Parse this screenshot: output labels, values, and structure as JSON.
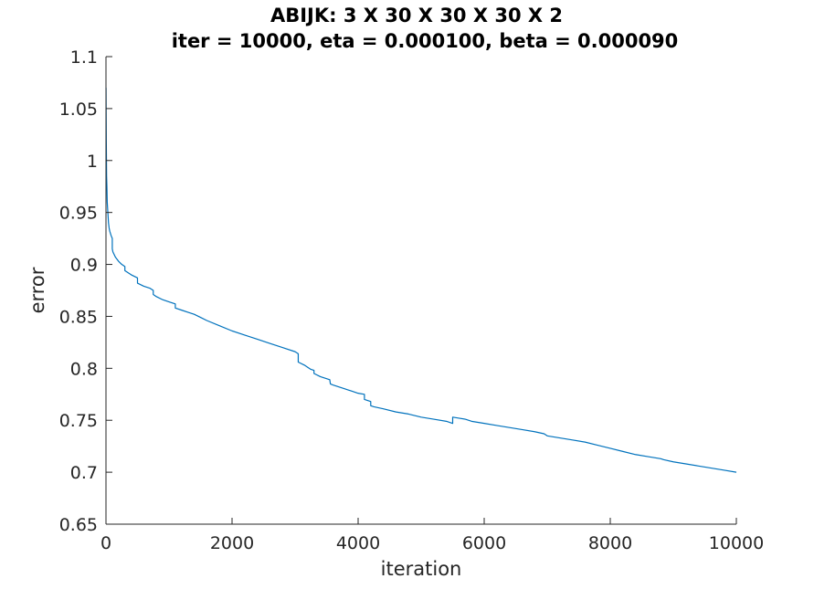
{
  "chart_data": {
    "type": "line",
    "title": "ABIJK: 3 X 30 X 30 X 30 X 2",
    "subtitle": "iter = 10000, eta = 0.000100, beta = 0.000090",
    "xlabel": "iteration",
    "ylabel": "error",
    "xlim": [
      0,
      10000
    ],
    "ylim": [
      0.65,
      1.1
    ],
    "xticks": [
      0,
      2000,
      4000,
      6000,
      8000,
      10000
    ],
    "xtick_labels": [
      "0",
      "2000",
      "4000",
      "6000",
      "8000",
      "10000"
    ],
    "yticks": [
      0.65,
      0.7,
      0.75,
      0.8,
      0.85,
      0.9,
      0.95,
      1,
      1.05,
      1.1
    ],
    "ytick_labels": [
      "0.65",
      "0.7",
      "0.75",
      "0.8",
      "0.85",
      "0.9",
      "0.95",
      "1",
      "1.05",
      "1.1"
    ],
    "grid": false,
    "line_color": "#0072BD",
    "series": [
      {
        "x": [
          1,
          5,
          10,
          15,
          20,
          25,
          30,
          35,
          40,
          50,
          60,
          80,
          100,
          100,
          110,
          150,
          200,
          250,
          300,
          300,
          400,
          500,
          500,
          600,
          700,
          750,
          750,
          800,
          900,
          1000,
          1100,
          1100,
          1200,
          1300,
          1400,
          1500,
          1600,
          1800,
          2000,
          2200,
          2400,
          2600,
          2800,
          3000,
          3050,
          3050,
          3150,
          3200,
          3250,
          3300,
          3300,
          3400,
          3500,
          3550,
          3560,
          3600,
          3700,
          3800,
          3900,
          4000,
          4100,
          4100,
          4150,
          4200,
          4200,
          4250,
          4400,
          4600,
          4800,
          5000,
          5200,
          5400,
          5500,
          5500,
          5600,
          5700,
          5800,
          6000,
          6200,
          6400,
          6600,
          6800,
          6950,
          7000,
          7200,
          7400,
          7600,
          7800,
          8000,
          8200,
          8400,
          8600,
          8800,
          8850,
          9000,
          9200,
          9400,
          9600,
          9800,
          10000
        ],
        "y": [
          1.07,
          1.02,
          0.985,
          0.975,
          0.96,
          0.955,
          0.95,
          0.945,
          0.94,
          0.935,
          0.932,
          0.928,
          0.925,
          0.915,
          0.912,
          0.907,
          0.903,
          0.9,
          0.898,
          0.894,
          0.89,
          0.887,
          0.882,
          0.879,
          0.877,
          0.875,
          0.871,
          0.869,
          0.866,
          0.864,
          0.862,
          0.858,
          0.856,
          0.854,
          0.852,
          0.849,
          0.846,
          0.841,
          0.836,
          0.832,
          0.828,
          0.824,
          0.82,
          0.816,
          0.814,
          0.806,
          0.803,
          0.801,
          0.799,
          0.798,
          0.795,
          0.792,
          0.79,
          0.789,
          0.785,
          0.784,
          0.782,
          0.78,
          0.778,
          0.776,
          0.775,
          0.77,
          0.769,
          0.768,
          0.764,
          0.763,
          0.761,
          0.758,
          0.756,
          0.753,
          0.751,
          0.749,
          0.747,
          0.753,
          0.752,
          0.751,
          0.749,
          0.747,
          0.745,
          0.743,
          0.741,
          0.739,
          0.737,
          0.735,
          0.733,
          0.731,
          0.729,
          0.726,
          0.723,
          0.72,
          0.717,
          0.715,
          0.713,
          0.712,
          0.71,
          0.708,
          0.706,
          0.704,
          0.702,
          0.7
        ]
      }
    ]
  }
}
